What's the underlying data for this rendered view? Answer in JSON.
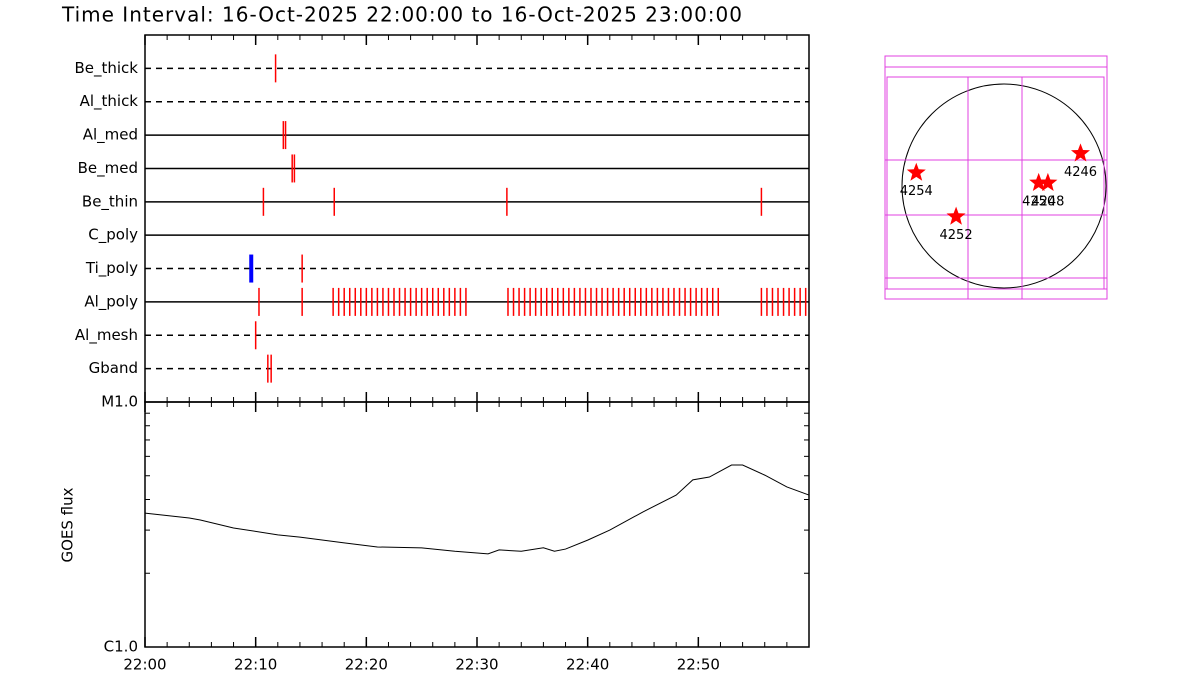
{
  "chart_data": [
    {
      "type": "timeline",
      "title": "Time Interval: 16-Oct-2025 22:00:00 to 16-Oct-2025 23:00:00",
      "xlim": [
        0,
        60
      ],
      "rows": [
        {
          "label": "Be_thick",
          "style": "dashed",
          "events": [
            {
              "color": "#ff0000",
              "x": [
                11.8
              ]
            }
          ]
        },
        {
          "label": "Al_thick",
          "style": "dashed",
          "events": []
        },
        {
          "label": "Al_med",
          "style": "solid",
          "events": [
            {
              "color": "#ff0000",
              "x": [
                12.5,
                12.7
              ]
            }
          ]
        },
        {
          "label": "Be_med",
          "style": "solid",
          "events": [
            {
              "color": "#ff0000",
              "x": [
                13.3,
                13.5
              ]
            }
          ]
        },
        {
          "label": "Be_thin",
          "style": "solid",
          "events": [
            {
              "color": "#ff0000",
              "x": [
                10.7,
                17.1,
                32.7,
                55.7
              ]
            }
          ]
        },
        {
          "label": "C_poly",
          "style": "solid",
          "events": []
        },
        {
          "label": "Ti_poly",
          "style": "dashed",
          "events": [
            {
              "color": "#0000ff",
              "x": [
                9.6
              ]
            },
            {
              "color": "#ff0000",
              "x": [
                14.2
              ]
            }
          ]
        },
        {
          "label": "Al_poly",
          "style": "solid",
          "events": [
            {
              "color": "#ff0000",
              "x": [
                10.3,
                14.2,
                17.0,
                17.5,
                18.0,
                18.5,
                19.0,
                19.5,
                20.0,
                20.5,
                21.0,
                21.5,
                22.0,
                22.5,
                23.0,
                23.5,
                24.0,
                24.5,
                25.0,
                25.5,
                26.0,
                26.5,
                27.0,
                27.5,
                28.0,
                28.5,
                29.0,
                32.8,
                33.3,
                33.8,
                34.3,
                34.8,
                35.3,
                35.8,
                36.3,
                36.8,
                37.3,
                37.8,
                38.3,
                38.8,
                39.3,
                39.8,
                40.3,
                40.8,
                41.3,
                41.8,
                42.3,
                42.8,
                43.3,
                43.8,
                44.3,
                44.8,
                45.3,
                45.8,
                46.3,
                46.8,
                47.3,
                47.8,
                48.3,
                48.8,
                49.3,
                49.8,
                50.3,
                50.8,
                51.3,
                51.8,
                55.7,
                56.2,
                56.7,
                57.2,
                57.7,
                58.2,
                58.7,
                59.2,
                59.7
              ]
            }
          ]
        },
        {
          "label": "Al_mesh",
          "style": "dashed",
          "events": [
            {
              "color": "#ff0000",
              "x": [
                10.0
              ]
            }
          ]
        },
        {
          "label": "Gband",
          "style": "dashed",
          "events": [
            {
              "color": "#ff0000",
              "x": [
                11.1,
                11.4
              ]
            }
          ]
        }
      ]
    },
    {
      "type": "line",
      "ylabel": "GOES flux",
      "log": true,
      "color": "#000000",
      "xlim": [
        0,
        60
      ],
      "xticks": [
        {
          "value": 0,
          "label": "22:00"
        },
        {
          "value": 10,
          "label": "22:10"
        },
        {
          "value": 20,
          "label": "22:20"
        },
        {
          "value": 30,
          "label": "22:30"
        },
        {
          "value": 40,
          "label": "22:40"
        },
        {
          "value": 50,
          "label": "22:50"
        }
      ],
      "ylim": [
        1e-06,
        1e-05
      ],
      "yticks": [
        {
          "value": 1e-06,
          "label": "C1.0"
        },
        {
          "value": 1e-05,
          "label": "M1.0"
        }
      ],
      "x": [
        0,
        4,
        5,
        8,
        12,
        14,
        18,
        21,
        25,
        28,
        31,
        32,
        34,
        36,
        37,
        38,
        40,
        42,
        45,
        48,
        49.5,
        51,
        53,
        54,
        56,
        58,
        60
      ],
      "values": [
        3.52e-06,
        3.36e-06,
        3.3e-06,
        3.06e-06,
        2.87e-06,
        2.81e-06,
        2.66e-06,
        2.56e-06,
        2.54e-06,
        2.46e-06,
        2.4e-06,
        2.49e-06,
        2.46e-06,
        2.54e-06,
        2.46e-06,
        2.51e-06,
        2.73e-06,
        3e-06,
        3.56e-06,
        4.17e-06,
        4.81e-06,
        4.94e-06,
        5.53e-06,
        5.53e-06,
        5.03e-06,
        4.5e-06,
        4.17e-06
      ]
    },
    {
      "type": "map",
      "color": "#ff0000",
      "points": [
        {
          "label": "4254",
          "x": -0.86,
          "y": 0.13
        },
        {
          "label": "4252",
          "x": -0.47,
          "y": -0.3
        },
        {
          "label": "4250",
          "x": 0.34,
          "y": 0.03
        },
        {
          "label": "4248",
          "x": 0.43,
          "y": 0.03
        },
        {
          "label": "4246",
          "x": 0.75,
          "y": 0.32
        }
      ]
    }
  ]
}
